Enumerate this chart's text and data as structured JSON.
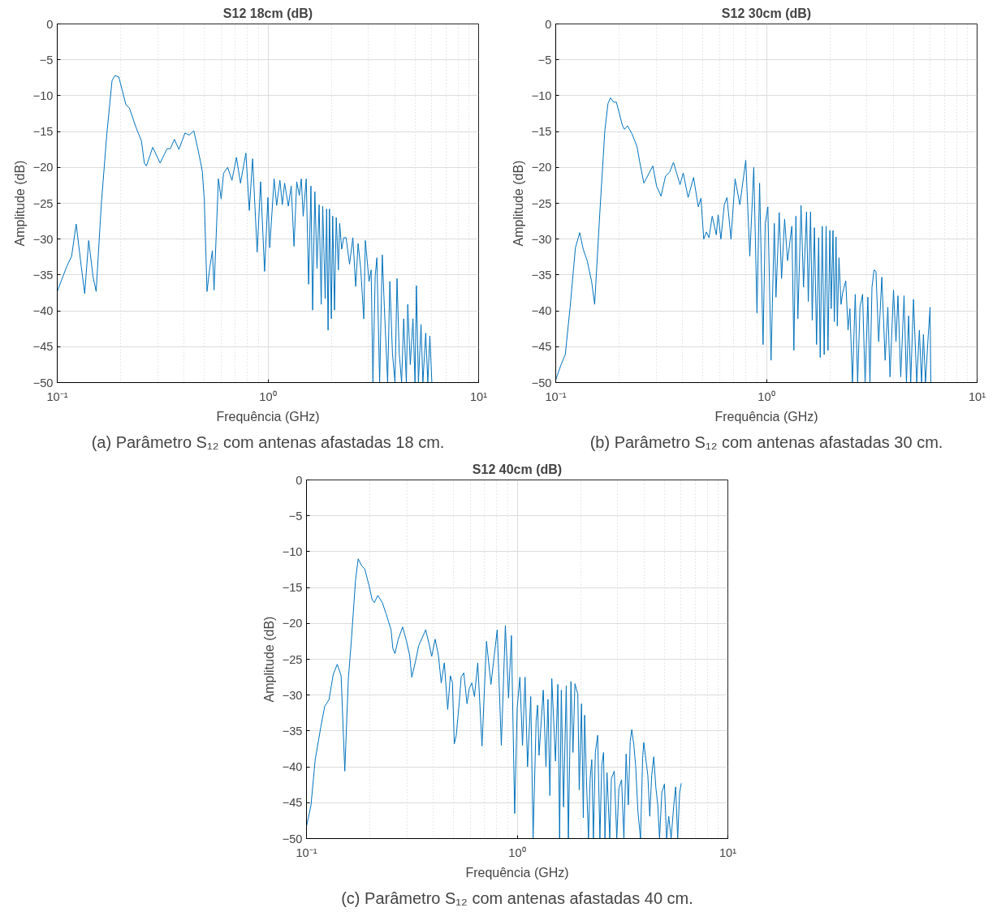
{
  "chart_data": [
    {
      "type": "line",
      "title": "S12 18cm (dB)",
      "xlabel": "Frequência (GHz)",
      "ylabel": "Amplitude (dB)",
      "annotations": [
        "(a) Parâmetro S₁₂ com antenas afastadas 18 cm."
      ],
      "log": "x",
      "grid": true,
      "xlim": [
        0.1,
        10
      ],
      "ylim": [
        -50,
        0
      ],
      "xticks": [
        {
          "value": 0.1,
          "label": "10⁻¹"
        },
        {
          "value": 1,
          "label": "10⁰"
        },
        {
          "value": 10,
          "label": "10¹"
        }
      ],
      "yticks": [
        -50,
        -45,
        -40,
        -35,
        -30,
        -25,
        -20,
        -15,
        -10,
        -5,
        0
      ],
      "series": [
        {
          "color": "#0072bd",
          "x": [
            0.1,
            0.111,
            0.117,
            0.123,
            0.13,
            0.135,
            0.141,
            0.148,
            0.153,
            0.162,
            0.172,
            0.182,
            0.188,
            0.196,
            0.212,
            0.22,
            0.237,
            0.251,
            0.259,
            0.265,
            0.284,
            0.308,
            0.332,
            0.344,
            0.36,
            0.378,
            0.404,
            0.423,
            0.445,
            0.471,
            0.488,
            0.499,
            0.514,
            0.529,
            0.545,
            0.555,
            0.582,
            0.6,
            0.616,
            0.644,
            0.675,
            0.709,
            0.741,
            0.786,
            0.816,
            0.846,
            0.889,
            0.923,
            0.964,
            1.0,
            1.02,
            1.07,
            1.1,
            1.14,
            1.17,
            1.2,
            1.25,
            1.29,
            1.33,
            1.37,
            1.41,
            1.44,
            1.47,
            1.52,
            1.56,
            1.6,
            1.63,
            1.67,
            1.71,
            1.75,
            1.79,
            1.82,
            1.87,
            1.9,
            1.93,
            1.96,
            2.0,
            2.03,
            2.07,
            2.11,
            2.16,
            2.19,
            2.24,
            2.29,
            2.35,
            2.44,
            2.53,
            2.61,
            2.68,
            2.76,
            2.85,
            2.9,
            3.02,
            3.09,
            3.15,
            3.23,
            3.29,
            3.39,
            3.49,
            3.57,
            3.7,
            3.79,
            3.9,
            4.01,
            4.1,
            4.2,
            4.31,
            4.41,
            4.54,
            4.61,
            4.74,
            4.88,
            4.99,
            5.07,
            5.18,
            5.33,
            5.44,
            5.61,
            5.74,
            5.87,
            6.0
          ],
          "values": [
            -37.3,
            -33.8,
            -32.4,
            -27.9,
            -33.8,
            -37.6,
            -30.2,
            -35.3,
            -37.3,
            -25.0,
            -15.3,
            -7.9,
            -7.2,
            -7.4,
            -11.3,
            -11.7,
            -14.5,
            -16.3,
            -19.4,
            -19.8,
            -17.2,
            -19.4,
            -17.4,
            -17.4,
            -16.1,
            -17.5,
            -15.2,
            -15.5,
            -14.9,
            -18.2,
            -20.5,
            -24.6,
            -37.3,
            -34.1,
            -31.6,
            -37.1,
            -21.6,
            -24.4,
            -20.8,
            -20.0,
            -21.8,
            -18.6,
            -22.2,
            -18.0,
            -26.0,
            -18.8,
            -31.8,
            -22.0,
            -34.5,
            -24.2,
            -31.2,
            -21.6,
            -25.3,
            -21.8,
            -25.2,
            -22.2,
            -25.4,
            -22.6,
            -31.0,
            -22.0,
            -23.9,
            -21.6,
            -26.8,
            -21.6,
            -36.3,
            -22.6,
            -39.9,
            -23.4,
            -34.1,
            -25.2,
            -39.1,
            -25.4,
            -38.3,
            -25.8,
            -42.7,
            -25.8,
            -41.1,
            -26.8,
            -39.9,
            -27.0,
            -34.3,
            -27.8,
            -31.4,
            -29.8,
            -29.8,
            -33.5,
            -29.8,
            -36.6,
            -30.6,
            -34.3,
            -41.1,
            -30.2,
            -35.9,
            -34.3,
            -50,
            -35.1,
            -32.6,
            -50,
            -32.2,
            -39.5,
            -50,
            -35.9,
            -45.9,
            -50,
            -35.5,
            -45.9,
            -50,
            -41.1,
            -50,
            -39.1,
            -47.5,
            -41.1,
            -50,
            -36.5,
            -50,
            -41.9,
            -50,
            -43.1,
            -50,
            -43.5,
            -50
          ]
        }
      ]
    },
    {
      "type": "line",
      "title": "S12 30cm (dB)",
      "xlabel": "Frequência (GHz)",
      "ylabel": "Amplitude (dB)",
      "annotations": [
        "(b) Parâmetro S₁₂ com antenas afastadas 30 cm."
      ],
      "log": "x",
      "grid": true,
      "xlim": [
        0.1,
        10
      ],
      "ylim": [
        -50,
        0
      ],
      "xticks": [
        {
          "value": 0.1,
          "label": "10⁻¹"
        },
        {
          "value": 1,
          "label": "10⁰"
        },
        {
          "value": 10,
          "label": "10¹"
        }
      ],
      "yticks": [
        -50,
        -45,
        -40,
        -35,
        -30,
        -25,
        -20,
        -15,
        -10,
        -5,
        0
      ],
      "series": [
        {
          "color": "#0072bd",
          "x": [
            0.1,
            0.106,
            0.111,
            0.117,
            0.124,
            0.13,
            0.135,
            0.141,
            0.148,
            0.153,
            0.162,
            0.171,
            0.177,
            0.182,
            0.188,
            0.194,
            0.207,
            0.212,
            0.219,
            0.23,
            0.243,
            0.251,
            0.262,
            0.289,
            0.301,
            0.316,
            0.332,
            0.347,
            0.362,
            0.389,
            0.403,
            0.425,
            0.451,
            0.475,
            0.489,
            0.504,
            0.519,
            0.534,
            0.553,
            0.578,
            0.59,
            0.608,
            0.631,
            0.65,
            0.679,
            0.71,
            0.748,
            0.798,
            0.834,
            0.871,
            0.902,
            0.928,
            0.964,
            0.987,
            1.016,
            1.052,
            1.09,
            1.11,
            1.15,
            1.18,
            1.22,
            1.26,
            1.32,
            1.35,
            1.38,
            1.41,
            1.46,
            1.5,
            1.55,
            1.58,
            1.62,
            1.65,
            1.69,
            1.73,
            1.77,
            1.8,
            1.84,
            1.88,
            1.92,
            1.96,
            2.0,
            2.03,
            2.07,
            2.1,
            2.14,
            2.17,
            2.21,
            2.26,
            2.3,
            2.38,
            2.44,
            2.49,
            2.56,
            2.64,
            2.71,
            2.78,
            2.86,
            2.94,
            3.03,
            3.1,
            3.17,
            3.24,
            3.31,
            3.41,
            3.53,
            3.66,
            3.77,
            3.86,
            4.01,
            4.12,
            4.21,
            4.34,
            4.5,
            4.62,
            4.73,
            4.84,
            4.99,
            5.17,
            5.32,
            5.45,
            5.56,
            5.69,
            5.86,
            5.98,
            6.03
          ],
          "values": [
            -49.6,
            -47.5,
            -46.1,
            -39.5,
            -31.2,
            -29.1,
            -31.4,
            -33.0,
            -35.9,
            -39.1,
            -26.2,
            -14.9,
            -11.1,
            -10.3,
            -10.9,
            -10.9,
            -14.1,
            -14.7,
            -14.2,
            -15.3,
            -17.1,
            -19.4,
            -22.2,
            -19.8,
            -22.6,
            -24.0,
            -21.2,
            -20.7,
            -19.3,
            -22.4,
            -20.8,
            -24.2,
            -21.4,
            -25.5,
            -24.3,
            -30.0,
            -29.0,
            -29.8,
            -26.8,
            -29.4,
            -26.6,
            -30.0,
            -25.2,
            -24.2,
            -30.0,
            -21.6,
            -25.2,
            -19.0,
            -32.4,
            -20.0,
            -40.3,
            -22.2,
            -44.7,
            -27.8,
            -25.5,
            -46.9,
            -27.8,
            -38.1,
            -26.3,
            -35.5,
            -27.2,
            -33.0,
            -28.2,
            -45.5,
            -26.8,
            -41.1,
            -25.3,
            -36.7,
            -26.2,
            -38.7,
            -26.2,
            -41.3,
            -28.4,
            -44.7,
            -29.8,
            -46.5,
            -28.2,
            -46.1,
            -28.2,
            -45.5,
            -28.8,
            -39.7,
            -28.8,
            -41.5,
            -29.7,
            -42.1,
            -32.6,
            -39.1,
            -37.5,
            -35.8,
            -42.7,
            -39.7,
            -50,
            -37.7,
            -50,
            -39.5,
            -37.7,
            -50,
            -38.1,
            -50,
            -36.7,
            -34.3,
            -34.5,
            -44.3,
            -35.3,
            -46.9,
            -39.5,
            -49.2,
            -37.1,
            -44.3,
            -37.9,
            -49.2,
            -37.9,
            -50,
            -40.7,
            -50,
            -38.4,
            -50,
            -42.7,
            -50,
            -43.3,
            -50,
            -43.5,
            -39.5,
            -50
          ]
        }
      ]
    },
    {
      "type": "line",
      "title": "S12 40cm (dB)",
      "xlabel": "Frequência (GHz)",
      "ylabel": "Amplitude (dB)",
      "annotations": [
        "(c) Parâmetro S₁₂ com antenas afastadas 40 cm."
      ],
      "log": "x",
      "grid": true,
      "xlim": [
        0.1,
        10
      ],
      "ylim": [
        -50,
        0
      ],
      "xticks": [
        {
          "value": 0.1,
          "label": "10⁻¹"
        },
        {
          "value": 1,
          "label": "10⁰"
        },
        {
          "value": 10,
          "label": "10¹"
        }
      ],
      "yticks": [
        -50,
        -45,
        -40,
        -35,
        -30,
        -25,
        -20,
        -15,
        -10,
        -5,
        0
      ],
      "series": [
        {
          "color": "#0072bd",
          "x": [
            0.1,
            0.105,
            0.11,
            0.117,
            0.122,
            0.128,
            0.134,
            0.14,
            0.146,
            0.152,
            0.158,
            0.163,
            0.171,
            0.176,
            0.183,
            0.189,
            0.198,
            0.205,
            0.21,
            0.218,
            0.229,
            0.239,
            0.252,
            0.257,
            0.263,
            0.272,
            0.286,
            0.298,
            0.309,
            0.316,
            0.328,
            0.341,
            0.368,
            0.382,
            0.393,
            0.408,
            0.423,
            0.436,
            0.451,
            0.468,
            0.482,
            0.493,
            0.503,
            0.514,
            0.531,
            0.542,
            0.558,
            0.578,
            0.592,
            0.609,
            0.627,
            0.65,
            0.681,
            0.715,
            0.751,
            0.804,
            0.841,
            0.879,
            0.91,
            0.939,
            0.973,
            1.0,
            1.03,
            1.06,
            1.09,
            1.12,
            1.16,
            1.19,
            1.23,
            1.25,
            1.27,
            1.33,
            1.37,
            1.4,
            1.43,
            1.46,
            1.52,
            1.56,
            1.59,
            1.62,
            1.66,
            1.71,
            1.75,
            1.8,
            1.84,
            1.88,
            1.94,
            1.97,
            2.02,
            2.06,
            2.09,
            2.14,
            2.18,
            2.22,
            2.26,
            2.3,
            2.35,
            2.41,
            2.47,
            2.52,
            2.57,
            2.61,
            2.67,
            2.75,
            2.8,
            2.89,
            2.97,
            3.04,
            3.13,
            3.21,
            3.29,
            3.37,
            3.44,
            3.5,
            3.58,
            3.65,
            3.74,
            3.85,
            3.94,
            3.99,
            4.17,
            4.26,
            4.35,
            4.45,
            4.55,
            4.65,
            4.74,
            4.86,
            5.0,
            5.12,
            5.24,
            5.38,
            5.54,
            5.65,
            5.78,
            5.9,
            6.01
          ],
          "values": [
            -48.3,
            -45.4,
            -39.0,
            -34.4,
            -31.6,
            -30.6,
            -27.1,
            -25.7,
            -27.3,
            -40.6,
            -27.7,
            -22.7,
            -13.9,
            -11.0,
            -12.0,
            -12.4,
            -14.7,
            -16.7,
            -17.1,
            -16.1,
            -17.1,
            -18.7,
            -20.9,
            -23.5,
            -24.2,
            -22.3,
            -20.5,
            -22.4,
            -24.5,
            -27.5,
            -25.5,
            -23.1,
            -20.9,
            -22.9,
            -24.6,
            -22.2,
            -24.5,
            -28.3,
            -25.5,
            -32.0,
            -27.3,
            -28.3,
            -36.8,
            -35.6,
            -31.0,
            -27.5,
            -26.9,
            -31.2,
            -29.1,
            -28.3,
            -30.2,
            -25.5,
            -37.1,
            -22.5,
            -28.5,
            -20.9,
            -37.0,
            -20.3,
            -30.4,
            -21.7,
            -46.5,
            -31.8,
            -27.5,
            -37.0,
            -27.5,
            -40.0,
            -30.2,
            -50,
            -33.6,
            -31.4,
            -38.4,
            -29.3,
            -40.0,
            -30.6,
            -44.0,
            -27.7,
            -39.2,
            -28.5,
            -50,
            -29.3,
            -45.6,
            -28.7,
            -50,
            -28.1,
            -38.0,
            -28.4,
            -29.9,
            -43.2,
            -31.2,
            -47.1,
            -32.8,
            -43.2,
            -50,
            -41.6,
            -39.0,
            -50,
            -38.0,
            -35.6,
            -50,
            -39.8,
            -38.0,
            -50,
            -40.8,
            -50,
            -41.6,
            -40.6,
            -50,
            -43.0,
            -41.8,
            -50,
            -38.2,
            -45.3,
            -36.4,
            -34.8,
            -37.0,
            -39.8,
            -46.1,
            -50,
            -38.8,
            -36.6,
            -41.2,
            -46.9,
            -41.2,
            -38.6,
            -42.8,
            -45.4,
            -50,
            -43.6,
            -42.4,
            -50,
            -46.9,
            -50,
            -45.3,
            -42.8,
            -50,
            -43.6,
            -42.3
          ]
        }
      ]
    }
  ]
}
